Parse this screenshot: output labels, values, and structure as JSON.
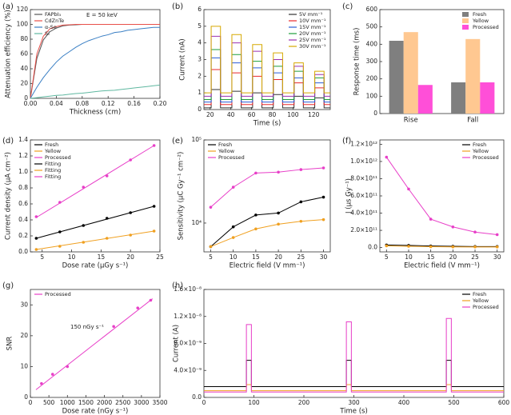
{
  "chart_data": [
    {
      "type": "line",
      "panel_label": "(a)",
      "xlabel": "Thickness (cm)",
      "ylabel": "Attenuation efficiency (%)",
      "annotation": "E = 50 keV",
      "xlim": [
        0,
        0.2
      ],
      "ylim": [
        0,
        120
      ],
      "xticks": [
        {
          "value": 0,
          "label": "0.00"
        },
        0.04,
        0.08,
        0.12,
        0.16,
        {
          "value": 0.2,
          "label": "0.20"
        }
      ],
      "yticks": [
        0,
        20,
        40,
        60,
        80,
        100,
        120
      ],
      "legend": "upper left",
      "x": [
        0,
        0.01,
        0.02,
        0.03,
        0.04,
        0.05,
        0.06,
        0.07,
        0.08,
        0.09,
        0.1,
        0.11,
        0.12,
        0.13,
        0.14,
        0.15,
        0.16,
        0.17,
        0.18,
        0.19,
        0.2
      ],
      "series": [
        {
          "name": "FAPbI₃",
          "color": "#555555",
          "values": [
            0,
            54,
            79,
            90,
            95,
            98,
            99,
            99.5,
            100,
            100,
            100,
            100,
            100,
            100,
            100,
            100,
            100,
            100,
            100,
            100,
            100
          ]
        },
        {
          "name": "CdZnTe",
          "color": "#e8504a",
          "values": [
            0,
            60,
            84,
            94,
            97,
            99,
            99.5,
            100,
            100,
            100,
            100,
            100,
            100,
            100,
            100,
            100,
            100,
            100,
            100,
            100,
            100
          ]
        },
        {
          "name": "α-Se",
          "color": "#3a7fc4",
          "values": [
            0,
            15,
            28,
            39,
            49,
            57,
            63,
            69,
            74,
            78,
            81,
            84,
            86,
            89,
            90,
            92,
            93,
            94,
            95,
            96,
            96
          ]
        },
        {
          "name": "Si",
          "color": "#5fb8a0",
          "values": [
            0,
            1,
            2,
            3,
            4,
            4.5,
            5.5,
            6.5,
            7,
            8,
            9,
            10,
            10.5,
            11,
            12,
            13,
            14,
            15,
            16,
            17,
            18
          ]
        }
      ]
    },
    {
      "type": "line",
      "panel_label": "(b)",
      "xlabel": "Time (s)",
      "ylabel": "Current (nA)",
      "xlim": [
        14,
        136
      ],
      "ylim": [
        0,
        6
      ],
      "xticks": [
        20,
        40,
        60,
        80,
        100,
        120
      ],
      "yticks": [
        0,
        1,
        2,
        3,
        4,
        5,
        6
      ],
      "legend": "upper right",
      "x": [
        14,
        21,
        21,
        30,
        30,
        41,
        41,
        50,
        50,
        61,
        61,
        70,
        70,
        81,
        81,
        90,
        90,
        101,
        101,
        110,
        110,
        121,
        121,
        130,
        130,
        136
      ],
      "series": [
        {
          "name": "5V mm⁻¹",
          "color": "#333333",
          "values": [
            0.1,
            0.1,
            1.2,
            1.2,
            0.1,
            0.1,
            1.1,
            1.1,
            0.1,
            0.1,
            1.0,
            1.0,
            0.1,
            0.1,
            0.9,
            0.9,
            0.1,
            0.1,
            0.8,
            0.8,
            0.1,
            0.1,
            0.7,
            0.7,
            0.1,
            0.1
          ]
        },
        {
          "name": "10V mm⁻¹",
          "color": "#e8282b",
          "values": [
            0.3,
            0.3,
            2.4,
            2.4,
            0.3,
            0.3,
            2.2,
            2.2,
            0.3,
            0.3,
            2.0,
            2.0,
            0.3,
            0.3,
            1.8,
            1.8,
            0.3,
            0.3,
            1.6,
            1.6,
            0.3,
            0.3,
            1.3,
            1.3,
            0.3,
            0.3
          ]
        },
        {
          "name": "15V mm⁻¹",
          "color": "#2a5cd6",
          "values": [
            0.45,
            0.45,
            3.1,
            3.1,
            0.45,
            0.45,
            2.8,
            2.8,
            0.45,
            0.45,
            2.5,
            2.5,
            0.45,
            0.45,
            2.2,
            2.2,
            0.45,
            0.45,
            1.9,
            1.9,
            0.45,
            0.45,
            1.6,
            1.6,
            0.45,
            0.45
          ]
        },
        {
          "name": "20V mm⁻¹",
          "color": "#1e9e3a",
          "values": [
            0.6,
            0.6,
            3.6,
            3.6,
            0.6,
            0.6,
            3.3,
            3.3,
            0.6,
            0.6,
            2.9,
            2.9,
            0.6,
            0.6,
            2.6,
            2.6,
            0.6,
            0.6,
            2.3,
            2.3,
            0.6,
            0.6,
            1.9,
            1.9,
            0.6,
            0.6
          ]
        },
        {
          "name": "25V mm⁻¹",
          "color": "#9b30b0",
          "values": [
            0.8,
            0.8,
            4.4,
            4.4,
            0.8,
            0.8,
            4.0,
            4.0,
            0.8,
            0.8,
            3.5,
            3.5,
            0.8,
            0.8,
            3.0,
            3.0,
            0.8,
            0.8,
            2.6,
            2.6,
            0.8,
            0.8,
            2.1,
            2.1,
            0.8,
            0.8
          ]
        },
        {
          "name": "30V mm⁻¹",
          "color": "#d6a800",
          "values": [
            1.0,
            1.0,
            5.0,
            5.0,
            1.0,
            1.0,
            4.5,
            4.5,
            1.0,
            1.0,
            3.9,
            3.9,
            1.0,
            1.0,
            3.4,
            3.4,
            1.0,
            1.0,
            2.8,
            2.8,
            1.0,
            1.0,
            2.3,
            2.3,
            1.0,
            1.0
          ]
        }
      ]
    },
    {
      "type": "bar",
      "panel_label": "(c)",
      "ylabel": "Response time (ms)",
      "categories": [
        "Rise",
        "Fall"
      ],
      "ylim": [
        0,
        600
      ],
      "yticks": [
        0,
        100,
        200,
        300,
        400,
        500,
        600
      ],
      "legend": "upper right",
      "series": [
        {
          "name": "Fresh",
          "color": "#7f7f7f",
          "values": [
            420,
            180
          ]
        },
        {
          "name": "Yellow",
          "color": "#ffc891",
          "values": [
            470,
            430
          ]
        },
        {
          "name": "Processed",
          "color": "#ff4fd8",
          "values": [
            165,
            180
          ]
        }
      ]
    },
    {
      "type": "scatter",
      "panel_label": "(d)",
      "xlabel": "Dose rate (μGy s⁻¹)",
      "ylabel": "Current density (μA cm⁻²)",
      "xlim": [
        3,
        25
      ],
      "ylim": [
        0,
        1.4
      ],
      "xticks": [
        5,
        10,
        15,
        20,
        25
      ],
      "yticks": [
        {
          "value": 0,
          "label": "0.0"
        },
        0.2,
        0.4,
        0.6,
        0.8,
        {
          "value": 1,
          "label": "1.0"
        },
        1.2,
        1.4
      ],
      "legend": "upper left",
      "series": [
        {
          "name": "Fresh",
          "color": "#000000",
          "mode": "markers",
          "x": [
            4,
            8,
            12,
            16,
            20,
            24
          ],
          "values": [
            0.17,
            0.25,
            0.33,
            0.42,
            0.49,
            0.57
          ]
        },
        {
          "name": "Yellow",
          "color": "#f0a020",
          "mode": "markers",
          "x": [
            4,
            8,
            12,
            16,
            20,
            24
          ],
          "values": [
            0.03,
            0.07,
            0.12,
            0.17,
            0.21,
            0.26
          ]
        },
        {
          "name": "Processed",
          "color": "#e83fc8",
          "mode": "markers",
          "x": [
            4,
            8,
            12,
            16,
            20,
            24
          ],
          "values": [
            0.44,
            0.62,
            0.81,
            0.95,
            1.15,
            1.33
          ]
        },
        {
          "name": "Fitting",
          "color": "#000000",
          "mode": "lines",
          "x": [
            4,
            24
          ],
          "values": [
            0.17,
            0.57
          ]
        },
        {
          "name": "Fitting",
          "color": "#f0a020",
          "mode": "lines",
          "x": [
            4,
            24
          ],
          "values": [
            0.03,
            0.26
          ]
        },
        {
          "name": "Fitting",
          "color": "#e83fc8",
          "mode": "lines",
          "x": [
            4,
            24
          ],
          "values": [
            0.43,
            1.33
          ]
        }
      ]
    },
    {
      "type": "line",
      "panel_label": "(e)",
      "xlabel": "Electric field (V mm⁻¹)",
      "ylabel": "Sensitivity (μC Gy⁻¹ cm⁻²)",
      "xlim": [
        3.5,
        31.5
      ],
      "ylim": [
        4500,
        100000
      ],
      "ylog": true,
      "xticks": [
        5,
        10,
        15,
        20,
        25,
        30
      ],
      "yticks": [
        {
          "value": 10000,
          "label": "10⁴"
        },
        {
          "value": 100000,
          "label": "10⁵"
        }
      ],
      "legend": "upper left",
      "x": [
        5,
        10,
        15,
        20,
        25,
        30
      ],
      "series": [
        {
          "name": "Fresh",
          "color": "#000000",
          "mode": "lines+markers",
          "values": [
            5200,
            9000,
            12500,
            13200,
            18000,
            20500
          ]
        },
        {
          "name": "Yellow",
          "color": "#f0a020",
          "mode": "lines+markers",
          "values": [
            5200,
            6700,
            8500,
            9700,
            10500,
            11000
          ]
        },
        {
          "name": "Processed",
          "color": "#e83fc8",
          "mode": "lines+markers",
          "values": [
            15500,
            27000,
            40000,
            41000,
            44000,
            46000
          ]
        }
      ]
    },
    {
      "type": "line",
      "panel_label": "(f)",
      "xlabel": "Electric field (V mm⁻¹)",
      "ylabel": "J (μs Gy⁻¹)",
      "xlim": [
        3.5,
        31.5
      ],
      "ylim": [
        -50000000000,
        1250000000000
      ],
      "xticks": [
        5,
        10,
        15,
        20,
        25,
        30
      ],
      "yticks": [
        {
          "value": 0,
          "label": "0.0"
        },
        {
          "value": 200000000000,
          "label": "2.0×10¹¹"
        },
        {
          "value": 400000000000,
          "label": "4.0×10¹¹"
        },
        {
          "value": 600000000000,
          "label": "6.0×10¹¹"
        },
        {
          "value": 800000000000,
          "label": "8.0×10¹¹"
        },
        {
          "value": 1000000000000,
          "label": "1.0×10¹²"
        },
        {
          "value": 1200000000000,
          "label": "1.2×10¹²"
        }
      ],
      "legend": "upper right",
      "x": [
        5,
        10,
        15,
        20,
        25,
        30
      ],
      "series": [
        {
          "name": "Fresh",
          "color": "#000000",
          "mode": "lines+markers",
          "values": [
            30000000000,
            25000000000,
            18000000000,
            15000000000,
            12000000000,
            12000000000
          ]
        },
        {
          "name": "Yellow",
          "color": "#f0a020",
          "mode": "lines+markers",
          "values": [
            20000000000,
            15000000000,
            10000000000,
            8000000000,
            7000000000,
            7000000000
          ]
        },
        {
          "name": "Processed",
          "color": "#e83fc8",
          "mode": "lines+markers",
          "values": [
            1050000000000,
            680000000000,
            330000000000,
            240000000000,
            180000000000,
            150000000000
          ]
        }
      ]
    },
    {
      "type": "scatter",
      "panel_label": "(g)",
      "xlabel": "Dose rate (nGy s⁻¹)",
      "ylabel": "SNR",
      "annotation": "150 nGy s⁻¹",
      "xlim": [
        0,
        3500
      ],
      "ylim": [
        0,
        35
      ],
      "xticks": [
        0,
        500,
        1000,
        1500,
        2000,
        2500,
        3000,
        3500
      ],
      "yticks": [
        0,
        10,
        20,
        30
      ],
      "legend": "upper left",
      "series": [
        {
          "name": "Processed",
          "color": "#e83fc8",
          "mode": "markers",
          "x": [
            300,
            600,
            1000,
            2250,
            2900,
            3250
          ],
          "values": [
            4.5,
            7.5,
            10,
            23,
            29,
            31.5
          ]
        },
        {
          "color": "#e83fc8",
          "mode": "lines",
          "x": [
            150,
            3300
          ],
          "values": [
            2.5,
            32
          ]
        }
      ]
    },
    {
      "type": "line",
      "panel_label": "(h)",
      "xlabel": "Time (s)",
      "ylabel": "Current (A)",
      "xlim": [
        0,
        600
      ],
      "ylim": [
        0,
        1.6e-08
      ],
      "xticks": [
        0,
        100,
        200,
        300,
        400,
        500,
        600
      ],
      "yticks": [
        {
          "value": 0,
          "label": "0.0"
        },
        {
          "value": 4e-09,
          "label": "4.0×10⁻⁹"
        },
        {
          "value": 8e-09,
          "label": "8.0×10⁻⁹"
        },
        {
          "value": 1.2e-08,
          "label": "1.2×10⁻⁸"
        },
        {
          "value": 1.6e-08,
          "label": "1.6×10⁻⁸"
        }
      ],
      "legend": "upper right",
      "x": [
        0,
        85,
        85,
        95,
        95,
        285,
        285,
        295,
        295,
        485,
        485,
        495,
        495,
        600
      ],
      "series": [
        {
          "name": "Fresh",
          "color": "#000000",
          "values": [
            1.6e-09,
            1.6e-09,
            5.5e-09,
            5.5e-09,
            1.6e-09,
            1.6e-09,
            5.5e-09,
            5.5e-09,
            1.6e-09,
            1.6e-09,
            5.5e-09,
            5.5e-09,
            1.6e-09,
            1.6e-09
          ]
        },
        {
          "name": "Yellow",
          "color": "#f0a020",
          "values": [
            1e-09,
            1e-09,
            1.9e-09,
            1.9e-09,
            1e-09,
            1e-09,
            1.9e-09,
            1.9e-09,
            1e-09,
            1e-09,
            1.9e-09,
            1.9e-09,
            1e-09,
            1e-09
          ]
        },
        {
          "name": "Processed",
          "color": "#e83fc8",
          "values": [
            8e-10,
            8e-10,
            1.08e-08,
            1.08e-08,
            8e-10,
            8e-10,
            1.12e-08,
            1.12e-08,
            8e-10,
            8e-10,
            1.17e-08,
            1.17e-08,
            8e-10,
            8e-10
          ]
        }
      ]
    }
  ]
}
